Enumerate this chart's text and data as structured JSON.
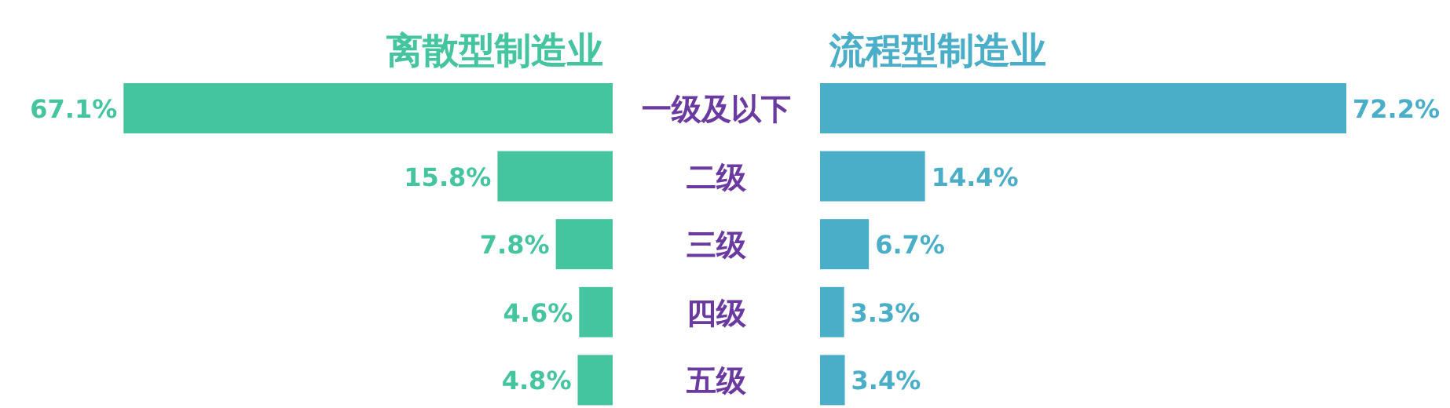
{
  "chart_data": [
    {
      "type": "bar",
      "orientation": "horizontal",
      "title": "离散型制造业",
      "categories": [
        "一级及以下",
        "二级",
        "三级",
        "四级",
        "五级"
      ],
      "color": "#45c4a0",
      "values": [
        67.1,
        15.8,
        7.8,
        4.6,
        4.8
      ],
      "value_labels": [
        "67.1%",
        "15.8%",
        "7.8%",
        "4.6%",
        "4.8%"
      ]
    },
    {
      "type": "bar",
      "orientation": "horizontal",
      "title": "流程型制造业",
      "categories": [
        null,
        null,
        null,
        null,
        null
      ],
      "color": "#4aaec8",
      "values": [
        72.2,
        14.4,
        6.7,
        3.3,
        3.4
      ],
      "value_labels": [
        "72.2%",
        "14.4%",
        "6.7%",
        "3.3%",
        "3.4%"
      ]
    }
  ]
}
